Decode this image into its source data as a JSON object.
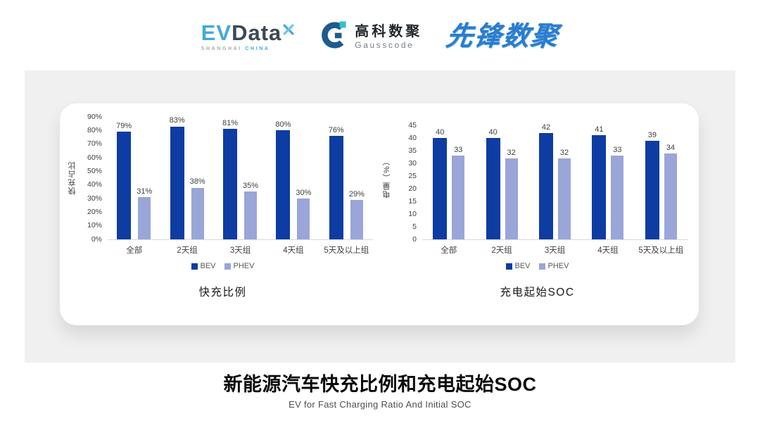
{
  "header": {
    "evdata": {
      "ev": "EV",
      "data": "Data",
      "shanghai": "SHANGHAI",
      "china": "CHINA"
    },
    "gausscode": {
      "cn": "高科数聚",
      "en": "Gausscode"
    },
    "xianfeng": {
      "text": "先锋数聚"
    }
  },
  "colors": {
    "bev": "#0d3ca3",
    "phev": "#9aa5d8",
    "panel": "#f0f0f1",
    "baseline": "#d8d8d8",
    "logo_blue": "#41a9da",
    "logo_dark": "#3d4856",
    "xianfeng_blue": "#2b7ccd"
  },
  "chart_data": [
    {
      "type": "bar",
      "title": "快充比例",
      "ylabel": "快充占比",
      "xlabel": "",
      "categories": [
        "全部",
        "2天组",
        "3天组",
        "4天组",
        "5天及以上组"
      ],
      "series": [
        {
          "name": "BEV",
          "color": "#0d3ca3",
          "values": [
            79,
            83,
            81,
            80,
            76
          ],
          "labels": [
            "79%",
            "83%",
            "81%",
            "80%",
            "76%"
          ]
        },
        {
          "name": "PHEV",
          "color": "#9aa5d8",
          "values": [
            31,
            38,
            35,
            30,
            29
          ],
          "labels": [
            "31%",
            "38%",
            "35%",
            "30%",
            "29%"
          ]
        }
      ],
      "ylim": [
        0,
        90
      ],
      "yticks": [
        "0%",
        "10%",
        "20%",
        "30%",
        "40%",
        "50%",
        "60%",
        "70%",
        "80%",
        "90%"
      ],
      "grid": false,
      "legend_position": "bottom"
    },
    {
      "type": "bar",
      "title": "充电起始SOC",
      "ylabel": "电量（%）",
      "xlabel": "",
      "categories": [
        "全部",
        "2天组",
        "3天组",
        "4天组",
        "5天及以上组"
      ],
      "series": [
        {
          "name": "BEV",
          "color": "#0d3ca3",
          "values": [
            40,
            40,
            42,
            41,
            39
          ],
          "labels": [
            "40",
            "40",
            "42",
            "41",
            "39"
          ]
        },
        {
          "name": "PHEV",
          "color": "#9aa5d8",
          "values": [
            33,
            32,
            32,
            33,
            34
          ],
          "labels": [
            "33",
            "32",
            "32",
            "33",
            "34"
          ]
        }
      ],
      "ylim": [
        0,
        45
      ],
      "yticks": [
        "0",
        "5",
        "10",
        "15",
        "20",
        "25",
        "30",
        "35",
        "40",
        "45"
      ],
      "grid": false,
      "legend_position": "bottom"
    }
  ],
  "footer": {
    "title": "新能源汽车快充比例和充电起始SOC",
    "subtitle": "EV for Fast Charging Ratio And Initial SOC"
  }
}
